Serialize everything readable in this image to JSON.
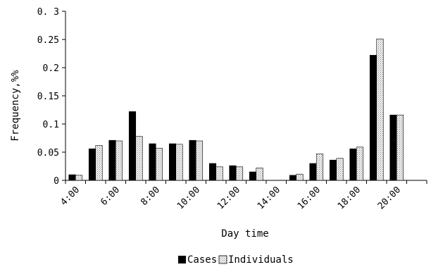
{
  "chart_data": {
    "type": "bar",
    "xlabel": "Day time",
    "ylabel": "Frequency,%%",
    "ylim": [
      0,
      0.3
    ],
    "yticks": [
      "0",
      "0.05",
      "0.1",
      "0.15",
      "0.2",
      "0.25",
      "0. 3"
    ],
    "categories": [
      "4:00",
      "5:00",
      "6:00",
      "7:00",
      "8:00",
      "9:00",
      "10:00",
      "11:00",
      "12:00",
      "13:00",
      "14:00",
      "15:00",
      "16:00",
      "17:00",
      "18:00",
      "19:00",
      "20:00",
      "21:00"
    ],
    "tick_labels": [
      "4:00",
      "",
      "6:00",
      "",
      "8:00",
      "",
      "10:00",
      "",
      "12:00",
      "",
      "14:00",
      "",
      "16:00",
      "",
      "18:00",
      "",
      "20:00",
      ""
    ],
    "series": [
      {
        "name": "Cases",
        "color": "#000000",
        "pattern": "solid",
        "values": [
          0.01,
          0.056,
          0.071,
          0.122,
          0.065,
          0.065,
          0.071,
          0.03,
          0.026,
          0.015,
          0,
          0.009,
          0.03,
          0.036,
          0.056,
          0.222,
          0.116,
          0
        ]
      },
      {
        "name": "Individuals",
        "color": "#bfbfbf",
        "pattern": "dotted",
        "values": [
          0.009,
          0.062,
          0.07,
          0.078,
          0.057,
          0.064,
          0.07,
          0.024,
          0.024,
          0.022,
          0,
          0.011,
          0.047,
          0.039,
          0.059,
          0.251,
          0.116,
          0
        ]
      }
    ],
    "legend_position": "bottom-center",
    "grid": false
  }
}
